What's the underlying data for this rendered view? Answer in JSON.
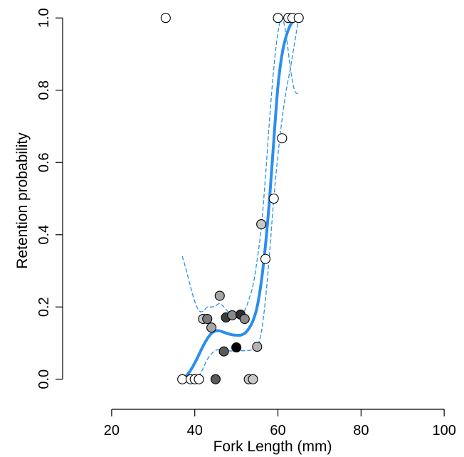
{
  "chart_data": {
    "type": "scatter",
    "xlabel": "Fork Length (mm)",
    "ylabel": "Retention probability",
    "xlim": [
      13,
      101
    ],
    "ylim": [
      -0.03,
      1.03
    ],
    "xticks": [
      20,
      40,
      60,
      80,
      100
    ],
    "yticks": [
      0.0,
      0.2,
      0.4,
      0.6,
      0.8,
      1.0
    ],
    "xtick_labels": [
      "20",
      "40",
      "60",
      "80",
      "100"
    ],
    "ytick_labels": [
      "0.0",
      "0.2",
      "0.4",
      "0.6",
      "0.8",
      "1.0"
    ],
    "grid": false,
    "points": [
      {
        "x": 33,
        "y": 1.0,
        "fill": "#ffffff"
      },
      {
        "x": 60,
        "y": 1.0,
        "fill": "#ffffff"
      },
      {
        "x": 62.5,
        "y": 1.0,
        "fill": "#ffffff"
      },
      {
        "x": 63.5,
        "y": 1.0,
        "fill": "#ffffff"
      },
      {
        "x": 65,
        "y": 1.0,
        "fill": "#ffffff"
      },
      {
        "x": 61,
        "y": 0.667,
        "fill": "#ffffff"
      },
      {
        "x": 59,
        "y": 0.5,
        "fill": "#ffffff"
      },
      {
        "x": 56,
        "y": 0.429,
        "fill": "#c8c8c8"
      },
      {
        "x": 57,
        "y": 0.333,
        "fill": "#ffffff"
      },
      {
        "x": 46,
        "y": 0.231,
        "fill": "#a6a6a6"
      },
      {
        "x": 42,
        "y": 0.167,
        "fill": "#c8c8c8"
      },
      {
        "x": 43,
        "y": 0.167,
        "fill": "#7a7a7a"
      },
      {
        "x": 47.5,
        "y": 0.171,
        "fill": "#3c3c3c"
      },
      {
        "x": 49,
        "y": 0.177,
        "fill": "#8a8a8a"
      },
      {
        "x": 51,
        "y": 0.179,
        "fill": "#2f2f2f"
      },
      {
        "x": 52,
        "y": 0.167,
        "fill": "#8a8a8a"
      },
      {
        "x": 44,
        "y": 0.143,
        "fill": "#a6a6a6"
      },
      {
        "x": 55,
        "y": 0.09,
        "fill": "#b3b3b3"
      },
      {
        "x": 50,
        "y": 0.088,
        "fill": "#000000"
      },
      {
        "x": 47,
        "y": 0.077,
        "fill": "#5a5a5a"
      },
      {
        "x": 37,
        "y": 0.0,
        "fill": "#ffffff"
      },
      {
        "x": 39,
        "y": 0.0,
        "fill": "#ffffff"
      },
      {
        "x": 40,
        "y": 0.0,
        "fill": "#ffffff"
      },
      {
        "x": 41,
        "y": 0.0,
        "fill": "#ffffff"
      },
      {
        "x": 45,
        "y": 0.0,
        "fill": "#5a5a5a"
      },
      {
        "x": 53,
        "y": 0.0,
        "fill": "#c8c8c8"
      },
      {
        "x": 54,
        "y": 0.0,
        "fill": "#c8c8c8"
      }
    ],
    "fit": {
      "color": "#2a8ef0",
      "x": [
        37,
        38,
        39,
        40,
        41,
        42,
        43,
        44,
        45,
        46,
        47,
        48,
        49,
        50,
        51,
        52,
        53,
        54,
        55,
        56,
        57,
        58,
        59,
        60,
        61,
        62,
        63,
        64,
        65
      ],
      "y": [
        0.0,
        0.01,
        0.025,
        0.045,
        0.068,
        0.092,
        0.112,
        0.127,
        0.134,
        0.134,
        0.13,
        0.126,
        0.123,
        0.122,
        0.122,
        0.127,
        0.14,
        0.162,
        0.2,
        0.27,
        0.37,
        0.5,
        0.66,
        0.81,
        0.9,
        0.95,
        0.98,
        0.995,
        1.0
      ]
    },
    "fit_lower": {
      "color": "#2a8ef0",
      "x": [
        38,
        39,
        40,
        41,
        42,
        43,
        44,
        45,
        46,
        47,
        48,
        49,
        50,
        51,
        52,
        53,
        54,
        55,
        56,
        57,
        58,
        59,
        60,
        61,
        62,
        63,
        64,
        65
      ],
      "y": [
        0.0,
        0.0,
        0.0,
        0.01,
        0.03,
        0.055,
        0.07,
        0.08,
        0.082,
        0.08,
        0.079,
        0.078,
        0.078,
        0.079,
        0.079,
        0.08,
        0.082,
        0.09,
        0.13,
        0.22,
        0.35,
        0.5,
        0.62,
        0.72,
        0.8,
        0.86,
        0.93,
        1.0
      ]
    },
    "fit_upper": {
      "color": "#2a8ef0",
      "x": [
        37,
        38,
        39,
        40,
        41,
        42,
        43,
        44,
        45,
        46,
        47,
        48,
        49,
        50,
        51,
        52,
        53,
        54,
        55,
        56,
        57,
        58,
        59,
        60,
        61,
        62,
        63,
        64,
        65
      ],
      "y": [
        0.34,
        0.3,
        0.255,
        0.215,
        0.19,
        0.188,
        0.2,
        0.2,
        0.203,
        0.21,
        0.2,
        0.187,
        0.17,
        0.17,
        0.178,
        0.19,
        0.22,
        0.26,
        0.33,
        0.42,
        0.56,
        0.72,
        0.86,
        0.96,
        1.0,
        0.95,
        0.86,
        0.8,
        0.79
      ]
    }
  }
}
